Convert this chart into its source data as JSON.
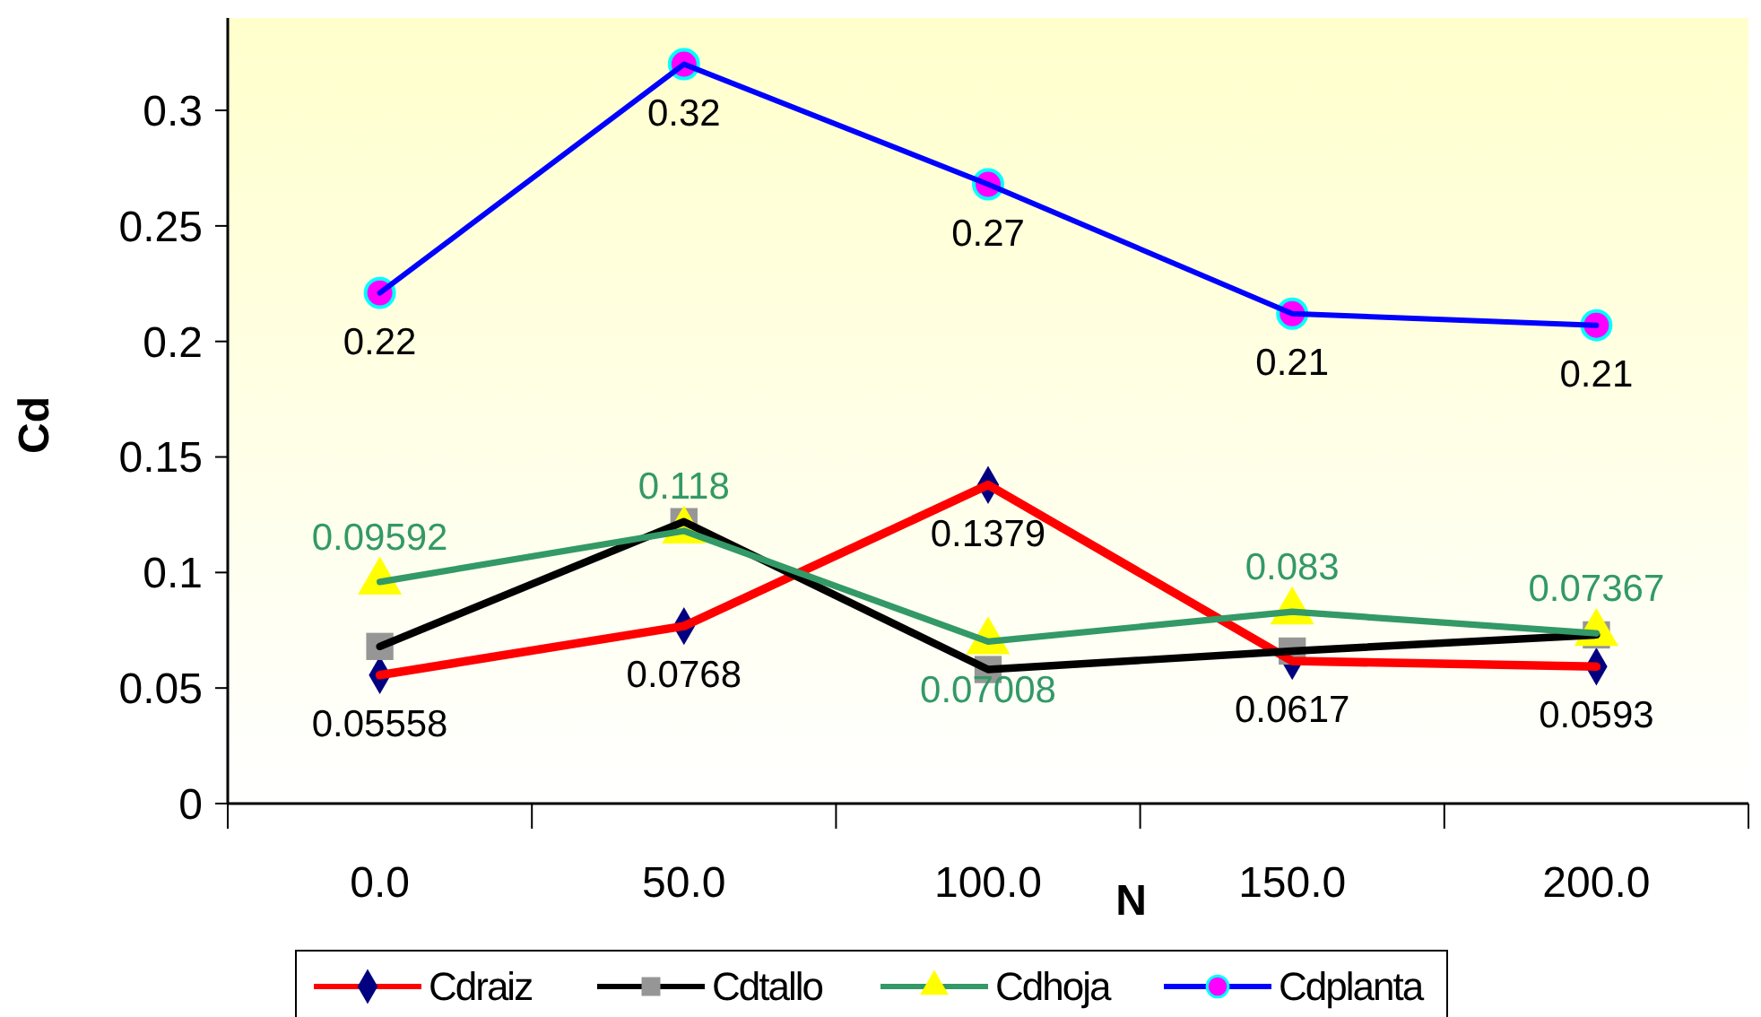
{
  "chart_data": {
    "type": "line",
    "xlabel": "N",
    "ylabel": "Cd",
    "categories": [
      "0.0",
      "50.0",
      "100.0",
      "150.0",
      "200.0"
    ],
    "ylim": [
      0,
      0.34
    ],
    "yticks": [
      0,
      0.05,
      0.1,
      0.15,
      0.2,
      0.25,
      0.3
    ],
    "grid": false,
    "legend": "bottom",
    "series": [
      {
        "name": "Cdraiz",
        "color": "#ff0000",
        "colors": [
          "#000080",
          "#000080",
          "#000080",
          "#000080",
          "#000080"
        ],
        "marker": "diamond",
        "values": [
          0.05558,
          0.0768,
          0.1379,
          0.0617,
          0.0593
        ],
        "value_labels": [
          "0.05558",
          "0.0768",
          "0.1379",
          "0.0617",
          "0.0593"
        ]
      },
      {
        "name": "Cdtallo",
        "color": "#000000",
        "colors": [
          "#969696",
          "#969696",
          "#969696",
          "#969696",
          "#969696"
        ],
        "marker": "square",
        "values": [
          0.068,
          0.122,
          0.058,
          0.066,
          0.073
        ]
      },
      {
        "name": "Cdhoja",
        "color": "#339966",
        "colors": [
          "#ffff00",
          "#ffff00",
          "#ffff00",
          "#ffff00",
          "#ffff00"
        ],
        "marker": "triangle",
        "values": [
          0.09592,
          0.118,
          0.07008,
          0.083,
          0.07367
        ],
        "value_labels": [
          "0.09592",
          "0.118",
          "0.07008",
          "0.083",
          "0.07367"
        ]
      },
      {
        "name": "Cdplanta",
        "color": "#0000ff",
        "colors": [
          "#ff00ff",
          "#ff00ff",
          "#ff00ff",
          "#ff00ff",
          "#ff00ff"
        ],
        "marker": "circle",
        "values": [
          0.221,
          0.32,
          0.268,
          0.212,
          0.207
        ],
        "value_labels": [
          "0.22",
          "0.32",
          "0.27",
          "0.21",
          "0.21"
        ]
      }
    ]
  }
}
